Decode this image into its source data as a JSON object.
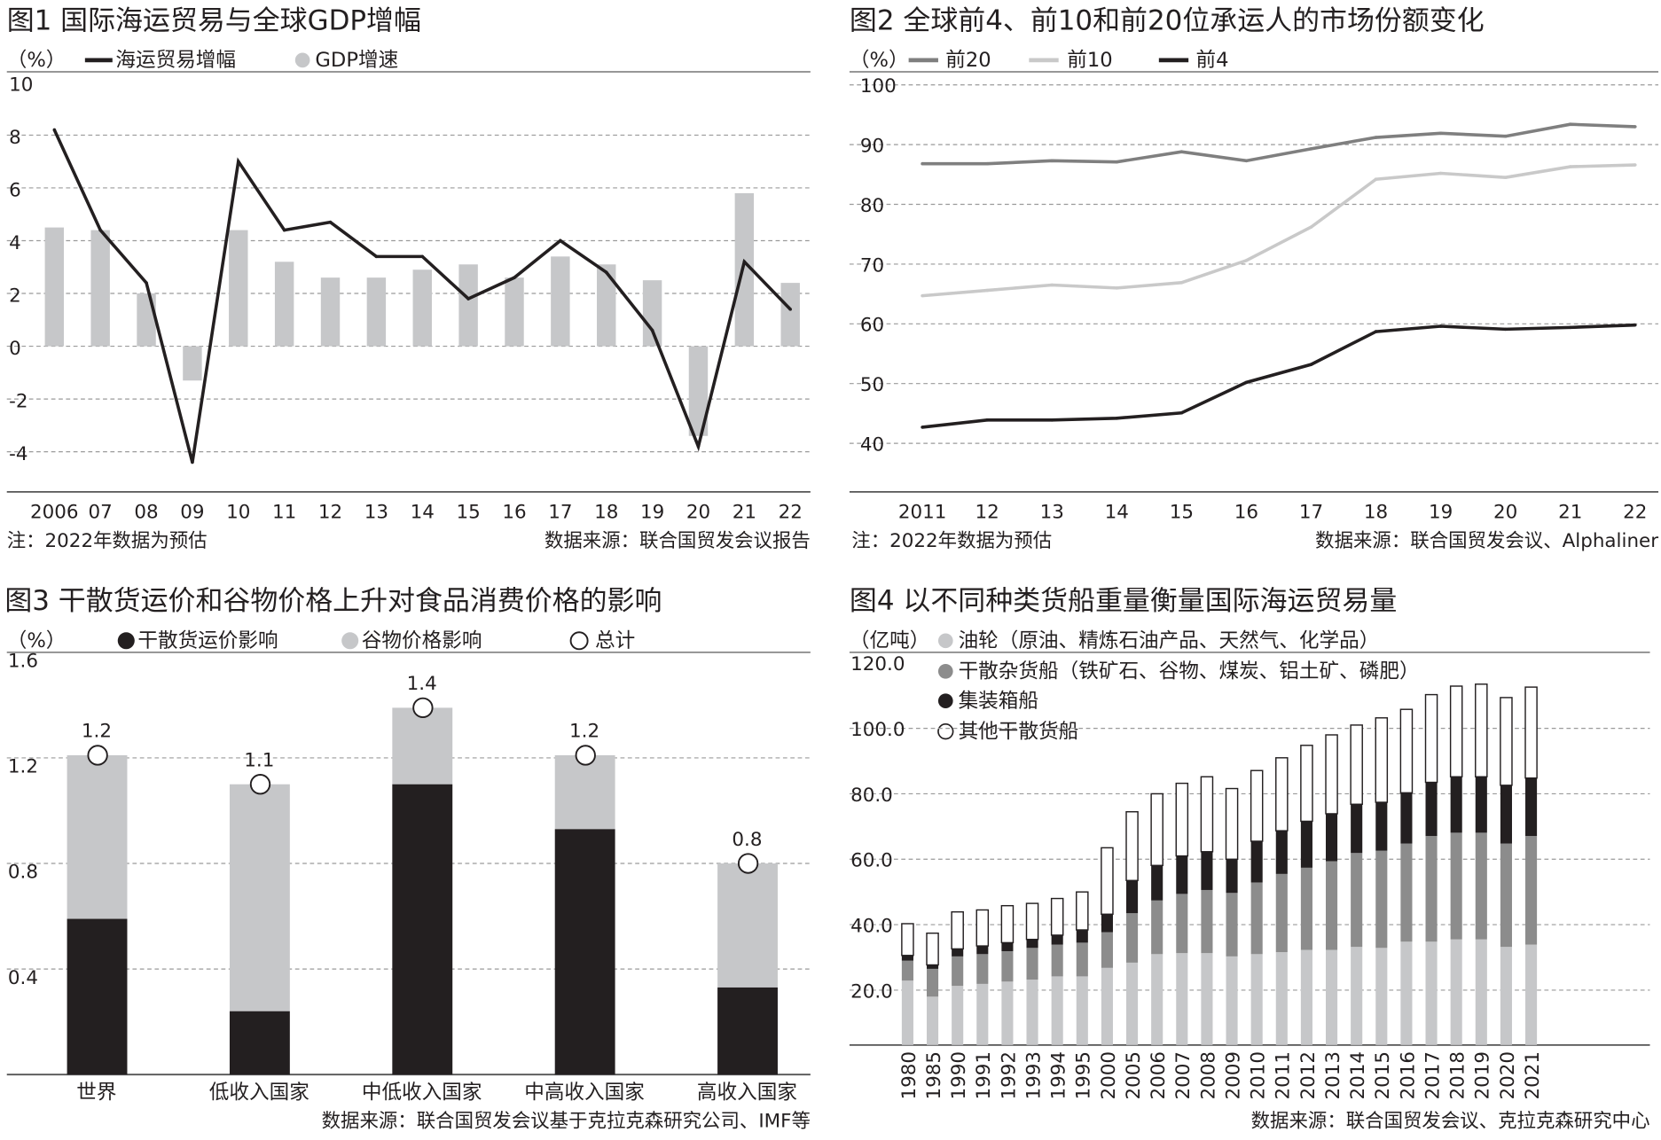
{
  "colors": {
    "dark": "#231f20",
    "light_gray": "#c6c7c9",
    "mid_gray": "#8c8c8c",
    "line_top20": "#7f7f7f",
    "line_top10": "#c9c9c9"
  },
  "chart_data": [
    {
      "type": "bar+line",
      "title": "图1 国际海运贸易与全球GDP增幅",
      "unit": "（%）",
      "categories": [
        "2006",
        "07",
        "08",
        "09",
        "10",
        "11",
        "12",
        "13",
        "14",
        "15",
        "16",
        "17",
        "18",
        "19",
        "20",
        "21",
        "22"
      ],
      "series": [
        {
          "name": "海运贸易增幅",
          "type": "line",
          "values": [
            8.2,
            4.4,
            2.4,
            -4.4,
            7.0,
            4.4,
            4.7,
            3.4,
            3.4,
            1.8,
            2.6,
            4.0,
            2.8,
            0.6,
            -3.8,
            3.2,
            1.4
          ]
        },
        {
          "name": "GDP增速",
          "type": "bar",
          "values": [
            4.5,
            4.4,
            2.0,
            -1.3,
            4.4,
            3.2,
            2.6,
            2.6,
            2.9,
            3.1,
            2.6,
            3.4,
            3.1,
            2.5,
            -3.4,
            5.8,
            2.4
          ]
        }
      ],
      "yticks": [
        "10",
        "8",
        "6",
        "4",
        "2",
        "0",
        "-2",
        "-4"
      ],
      "ylim": [
        -5.5,
        10
      ],
      "grid": true,
      "note": "注：2022年数据为预估",
      "source": "数据来源：联合国贸发会议报告"
    },
    {
      "type": "line",
      "title": "图2 全球前4、前10和前20位承运人的市场份额变化",
      "unit": "（%）",
      "categories": [
        "2011",
        "12",
        "13",
        "14",
        "15",
        "16",
        "17",
        "18",
        "19",
        "20",
        "21",
        "22"
      ],
      "series": [
        {
          "name": "前20",
          "values": [
            86.8,
            86.8,
            87.3,
            87.1,
            88.8,
            87.3,
            89.3,
            91.2,
            91.9,
            91.4,
            93.4,
            93.0
          ]
        },
        {
          "name": "前10",
          "values": [
            64.7,
            65.6,
            66.5,
            66.0,
            66.9,
            70.6,
            76.2,
            84.2,
            85.2,
            84.5,
            86.3,
            86.6
          ]
        },
        {
          "name": "前4",
          "values": [
            42.7,
            43.9,
            43.9,
            44.2,
            45.1,
            50.2,
            53.2,
            58.7,
            59.6,
            59.1,
            59.4,
            59.8
          ]
        }
      ],
      "yticks": [
        "100",
        "90",
        "80",
        "70",
        "60",
        "50",
        "40"
      ],
      "ylim": [
        32,
        100
      ],
      "grid": true,
      "note": "注：2022年数据为预估",
      "source": "数据来源：联合国贸发会议、Alphaliner"
    },
    {
      "type": "stacked-bar",
      "title": "图3 干散货运价和谷物价格上升对食品消费价格的影响",
      "unit": "（%）",
      "categories": [
        "世界",
        "低收入国家",
        "中低收入国家",
        "中高收入国家",
        "高收入国家"
      ],
      "series": [
        {
          "name": "干散货运价影响",
          "values": [
            0.59,
            0.24,
            1.1,
            0.93,
            0.33
          ]
        },
        {
          "name": "谷物价格影响",
          "values": [
            0.62,
            0.86,
            0.29,
            0.28,
            0.47
          ]
        }
      ],
      "totals_name": "总计",
      "totals": [
        "1.2",
        "1.1",
        "1.4",
        "1.2",
        "0.8"
      ],
      "yticks": [
        "1.6",
        "1.2",
        "0.8",
        "0.4"
      ],
      "ylim": [
        0,
        1.6
      ],
      "grid": true,
      "source": "数据来源：联合国贸发会议基于克拉克森研究公司、IMF等"
    },
    {
      "type": "stacked-bar",
      "title": "图4 以不同种类货船重量衡量国际海运贸易量",
      "unit": "（亿吨）",
      "categories": [
        "1980",
        "1985",
        "1990",
        "1991",
        "1992",
        "1993",
        "1994",
        "1995",
        "2000",
        "2005",
        "2006",
        "2007",
        "2008",
        "2009",
        "2010",
        "2011",
        "2012",
        "2013",
        "2014",
        "2015",
        "2016",
        "2017",
        "2018",
        "2019",
        "2020",
        "2021"
      ],
      "series": [
        {
          "name": "油轮（原油、精炼石油产品、天然气、化学品）",
          "values": [
            22.9,
            18.0,
            21.3,
            21.9,
            22.6,
            23.2,
            24.2,
            24.2,
            26.8,
            28.4,
            31.0,
            31.3,
            31.3,
            30.3,
            31.0,
            31.6,
            32.3,
            32.3,
            33.2,
            32.9,
            34.8,
            34.8,
            35.5,
            35.5,
            33.2,
            33.9
          ]
        },
        {
          "name": "干散杂货船（铁矿石、谷物、煤炭、铝土矿、磷肥）",
          "values": [
            6.1,
            8.5,
            9.0,
            9.1,
            9.3,
            9.7,
            9.7,
            10.3,
            10.9,
            15.1,
            16.4,
            18.1,
            19.3,
            19.4,
            21.9,
            23.9,
            25.1,
            27.1,
            28.7,
            29.7,
            30.0,
            32.3,
            32.6,
            32.6,
            31.6,
            33.2
          ]
        },
        {
          "name": "集装箱船",
          "values": [
            1.6,
            1.2,
            2.3,
            2.5,
            2.6,
            2.6,
            2.9,
            3.9,
            5.5,
            10.0,
            10.7,
            11.6,
            11.7,
            10.3,
            12.6,
            13.2,
            14.2,
            14.5,
            14.9,
            14.8,
            15.5,
            16.4,
            17.1,
            17.1,
            17.8,
            17.7
          ]
        },
        {
          "name": "其他干散货船",
          "values": [
            9.7,
            9.7,
            11.3,
            11.0,
            11.3,
            11.0,
            11.2,
            11.6,
            20.3,
            21.0,
            21.9,
            22.2,
            22.9,
            21.6,
            21.6,
            22.3,
            23.2,
            24.1,
            24.2,
            25.8,
            25.5,
            26.8,
            27.7,
            28.3,
            26.8,
            27.8
          ]
        }
      ],
      "yticks": [
        "120.0",
        "100.0",
        "80.0",
        "60.0",
        "40.0",
        "20.0"
      ],
      "ylim": [
        0,
        120
      ],
      "grid": true,
      "source": "数据来源：联合国贸发会议、克拉克森研究中心"
    }
  ]
}
